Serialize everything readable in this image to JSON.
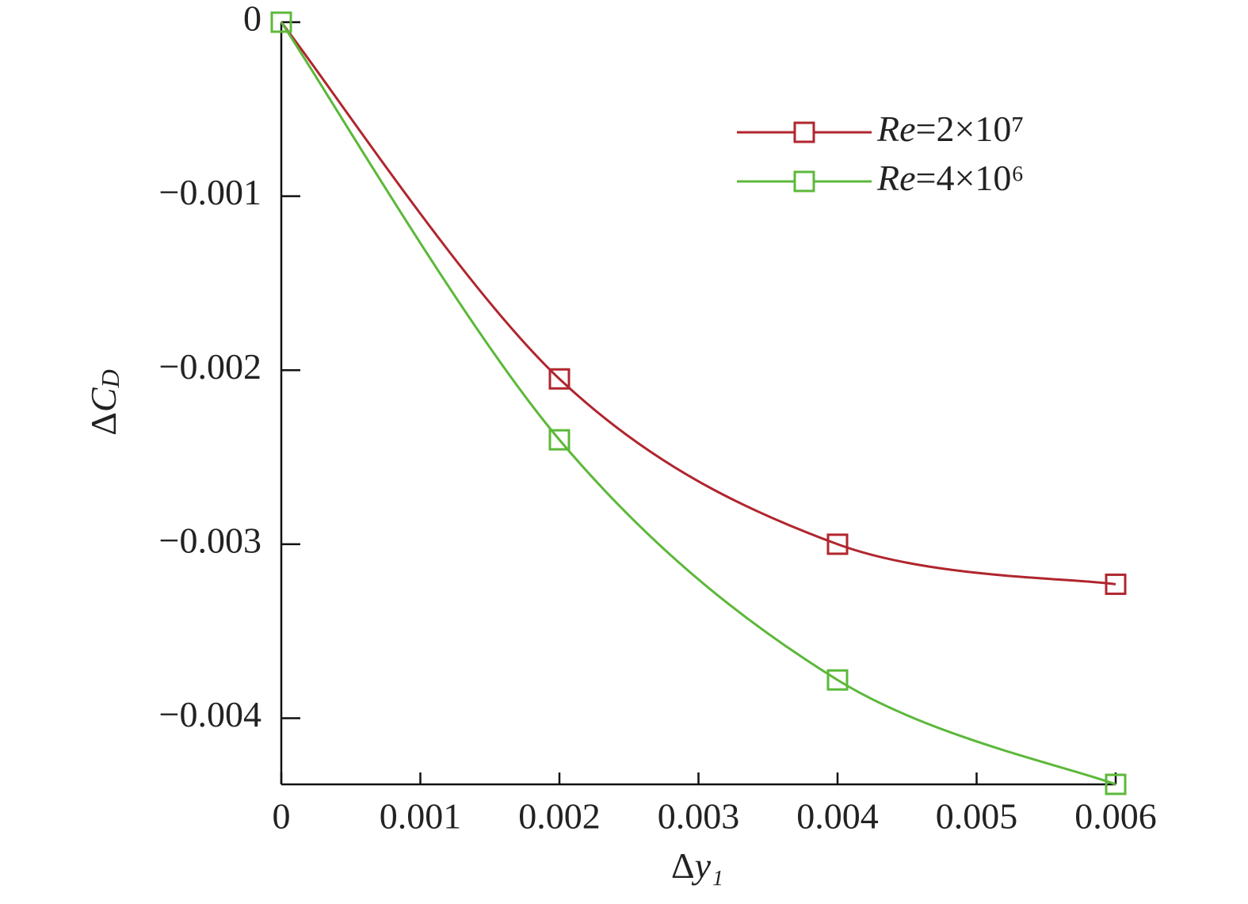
{
  "chart_data": {
    "type": "line",
    "x_label": "Δy₁",
    "y_label": "ΔCD",
    "x": [
      0,
      0.002,
      0.004,
      0.006
    ],
    "series": [
      {
        "name": "Re=2×10⁷",
        "color": "#b0262e",
        "values": [
          0,
          -0.00205,
          -0.003,
          -0.00323
        ]
      },
      {
        "name": "Re=4×10⁶",
        "color": "#5cb83a",
        "values": [
          0,
          -0.0024,
          -0.00378,
          -0.00438
        ]
      }
    ],
    "xlim": [
      0,
      0.006
    ],
    "ylim": [
      -0.00438,
      0
    ],
    "xticks": [
      0,
      0.001,
      0.002,
      0.003,
      0.004,
      0.005,
      0.006
    ],
    "yticks": [
      0,
      {
        "value": -0.001,
        "label": "−0.001"
      },
      {
        "value": -0.002,
        "label": "−0.002"
      },
      {
        "value": -0.003,
        "label": "−0.003"
      },
      {
        "value": -0.004,
        "label": "−0.004"
      }
    ],
    "legend": "upper right",
    "marker": "square"
  }
}
